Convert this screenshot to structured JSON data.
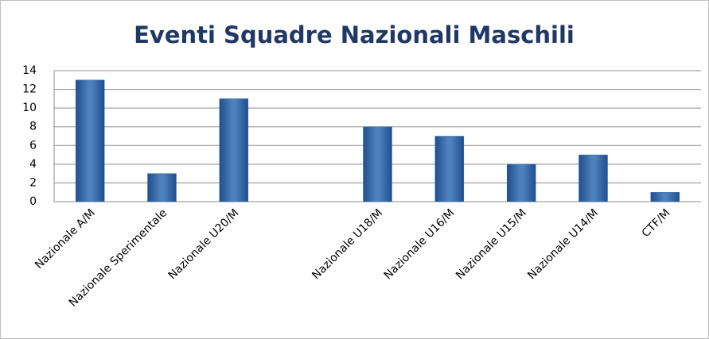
{
  "chart_data": {
    "type": "bar",
    "title": "Eventi Squadre Nazionali Maschili",
    "categories": [
      "Nazionale A/M",
      "Nazionale Sperimentale",
      "Nazionale U20/M",
      null,
      "Nazionale U18/M",
      "Nazionale U16/M",
      "Nazionale U15/M",
      "Nazionale U14/M",
      "CTF/M"
    ],
    "values": [
      13,
      3,
      11,
      null,
      8,
      7,
      4,
      5,
      1
    ],
    "color": "#4f81bd",
    "ylim": [
      0,
      14
    ],
    "yticks": [
      0,
      2,
      4,
      6,
      8,
      10,
      12,
      14
    ],
    "grid": true
  }
}
